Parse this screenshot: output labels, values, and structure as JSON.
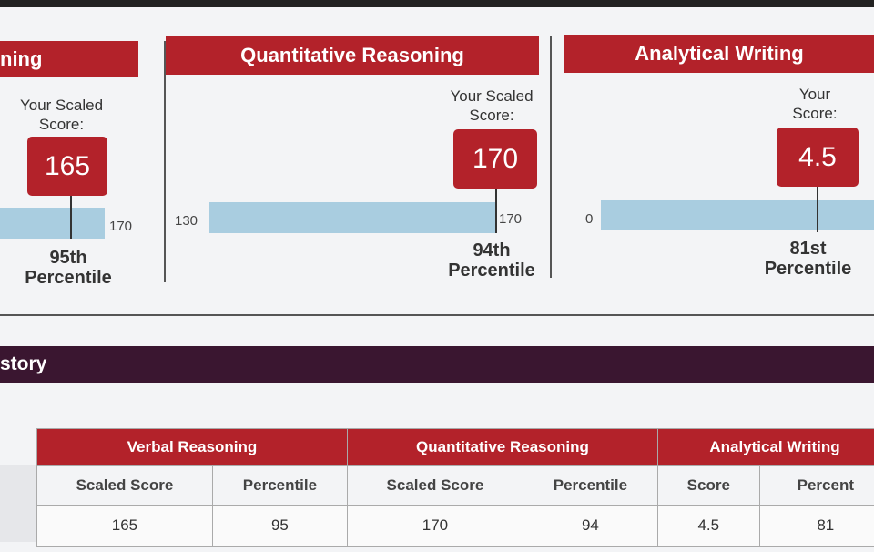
{
  "score_panels": [
    {
      "title": "ning",
      "score_label": "Your Scaled Score:",
      "score": 165,
      "range_max": 170,
      "percentile": "95th Percentile"
    },
    {
      "title": "Quantitative Reasoning",
      "score_label": "Your Scaled Score:",
      "score": 170,
      "range_min": 130,
      "range_max": 170,
      "percentile": "94th Percentile"
    },
    {
      "title": "Analytical Writing",
      "score_label": "Your Score:",
      "score": 4.5,
      "range_min": 0,
      "percentile": "81st Percentile"
    }
  ],
  "history": {
    "title": "story",
    "table": {
      "groups": [
        "Verbal Reasoning",
        "Quantitative Reasoning",
        "Analytical Writing"
      ],
      "columns": [
        "Scaled Score",
        "Percentile",
        "Scaled Score",
        "Percentile",
        "Score",
        "Percent"
      ],
      "rows": [
        [
          165,
          95,
          170,
          94,
          4.5,
          81
        ]
      ]
    }
  }
}
